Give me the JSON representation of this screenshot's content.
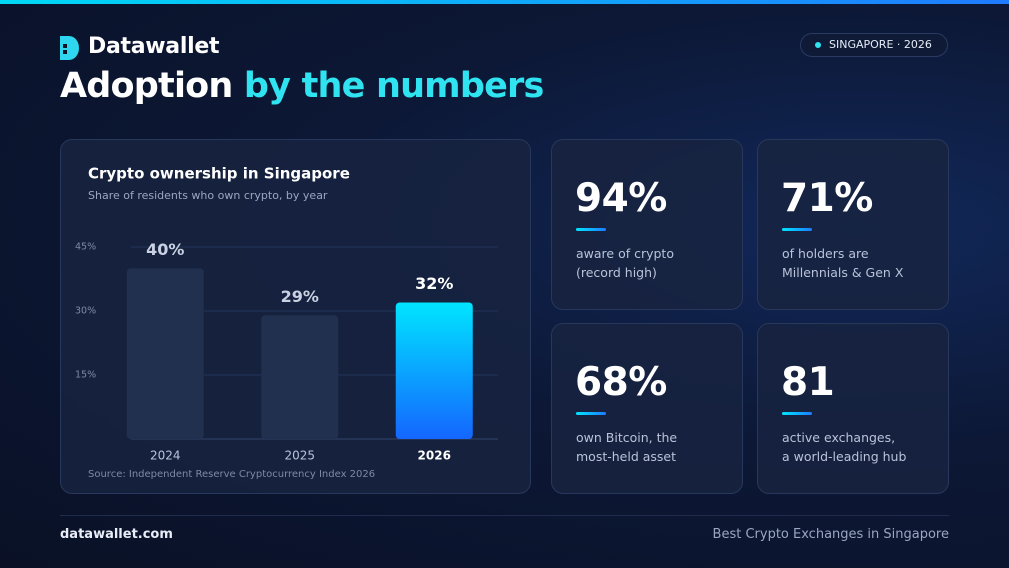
{
  "header": {
    "brand": "Datawallet",
    "title_start": "Adoption",
    "title_highlight": "by the numbers",
    "badge": "SINGAPORE · 2026"
  },
  "chart_data": {
    "type": "bar",
    "title": "Crypto ownership in Singapore",
    "subtitle": "Share of residents who own crypto, by year",
    "categories": [
      "2024",
      "2025",
      "2026"
    ],
    "values": [
      40,
      29,
      32
    ],
    "value_labels": [
      "40%",
      "29%",
      "32%"
    ],
    "colors": [
      "#22304f",
      "#22304f",
      "#00e5ff"
    ],
    "ylim": [
      0,
      45
    ],
    "yticks": [
      {
        "value": 15,
        "label": "15%"
      },
      {
        "value": 30,
        "label": "30%"
      },
      {
        "value": 45,
        "label": "45%"
      }
    ],
    "grid": true,
    "source": "Source: Independent Reserve Cryptocurrency Index 2026"
  },
  "stats": [
    {
      "value": "94%",
      "line1": "aware of crypto",
      "line2": "(record high)"
    },
    {
      "value": "71%",
      "line1": "of holders are",
      "line2": "Millennials & Gen X"
    },
    {
      "value": "68%",
      "line1": "own Bitcoin, the",
      "line2": "most-held asset"
    },
    {
      "value": "81",
      "line1": "active exchanges,",
      "line2": "a world-leading hub"
    }
  ],
  "footer": {
    "left": "datawallet.com",
    "right": "Best Crypto Exchanges in Singapore"
  }
}
